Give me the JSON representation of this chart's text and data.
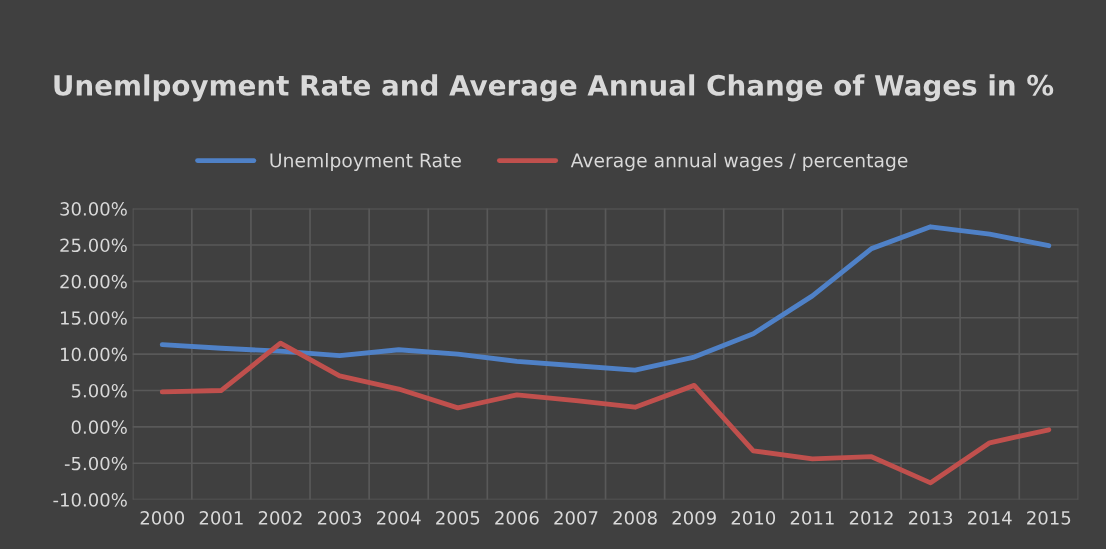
{
  "chart_data": {
    "type": "line",
    "title": "Unemlpoyment Rate and Average Annual Change of Wages in %",
    "categories": [
      "2000",
      "2001",
      "2002",
      "2003",
      "2004",
      "2005",
      "2006",
      "2007",
      "2008",
      "2009",
      "2010",
      "2011",
      "2012",
      "2013",
      "2014",
      "2015"
    ],
    "series": [
      {
        "name": "Unemlpoyment Rate",
        "color": "#4f81c7",
        "values": [
          11.3,
          10.8,
          10.4,
          9.8,
          10.6,
          10.0,
          9.0,
          8.4,
          7.8,
          9.6,
          12.8,
          18.0,
          24.5,
          27.5,
          26.5,
          24.9
        ]
      },
      {
        "name": "Average annual wages / percentage",
        "color": "#c0504d",
        "values": [
          4.8,
          5.0,
          11.5,
          7.0,
          5.2,
          2.6,
          4.4,
          3.6,
          2.7,
          5.7,
          -3.3,
          -4.4,
          -4.1,
          -7.7,
          -2.2,
          -0.4
        ]
      }
    ],
    "ylim": [
      -10,
      30
    ],
    "yticks": [
      {
        "value": -10,
        "label": "-10.00%"
      },
      {
        "value": -5,
        "label": "-5.00%"
      },
      {
        "value": 0,
        "label": "0.00%"
      },
      {
        "value": 5,
        "label": "5.00%"
      },
      {
        "value": 10,
        "label": "10.00%"
      },
      {
        "value": 15,
        "label": "15.00%"
      },
      {
        "value": 20,
        "label": "20.00%"
      },
      {
        "value": 25,
        "label": "25.00%"
      },
      {
        "value": 30,
        "label": "30.00%"
      }
    ],
    "grid": true,
    "legend": "top",
    "marker": "none",
    "line_style": "solid"
  }
}
